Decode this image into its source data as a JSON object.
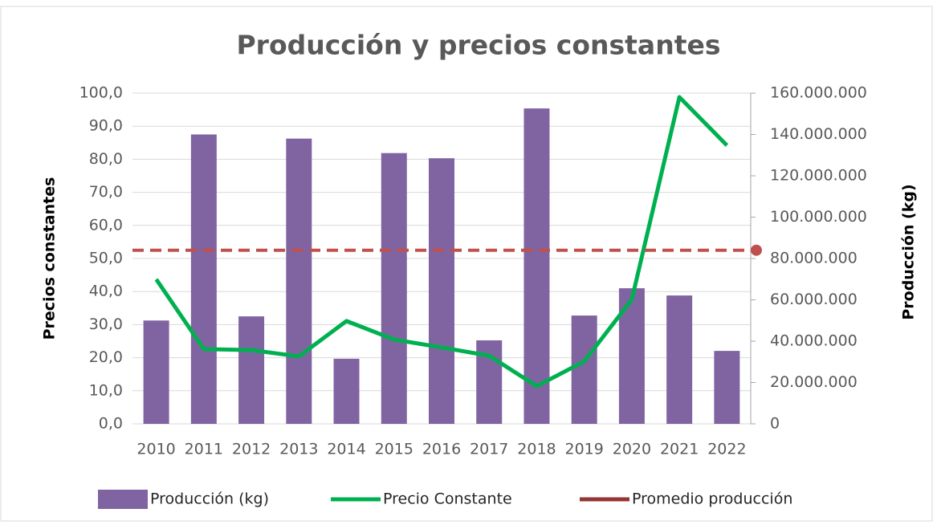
{
  "chart_data": {
    "type": "bar-line",
    "title": "Producción y precios constantes",
    "y_label": "Precios constantes",
    "y2_label": "Producción (kg)",
    "categories": [
      "2010",
      "2011",
      "2012",
      "2013",
      "2014",
      "2015",
      "2016",
      "2017",
      "2018",
      "2019",
      "2020",
      "2021",
      "2022"
    ],
    "series": [
      {
        "name": "Producción (kg)",
        "type": "bar",
        "axis": "y2",
        "color": "#8064a2",
        "values": [
          50000000,
          140000000,
          52000000,
          138000000,
          31500000,
          131000000,
          128500000,
          40400000,
          152600000,
          52400000,
          65600000,
          62100000,
          35300000
        ]
      },
      {
        "name": "Precio Constante",
        "type": "line",
        "axis": "y",
        "color": "#00b050",
        "values": [
          43.7,
          22.6,
          22.3,
          20.4,
          31.1,
          25.5,
          23.1,
          20.6,
          11.4,
          18.9,
          37.6,
          98.8,
          84.2
        ]
      },
      {
        "name": "Promedio producción",
        "type": "dashed-line",
        "axis": "y2",
        "color": "#c0504d",
        "values": [
          84000000,
          84000000,
          84000000,
          84000000,
          84000000,
          84000000,
          84000000,
          84000000,
          84000000,
          84000000,
          84000000,
          84000000,
          84000000
        ]
      }
    ],
    "ylim": [
      0,
      100
    ],
    "yticks": [
      {
        "value": 0,
        "label": "0,0"
      },
      {
        "value": 10,
        "label": "10,0"
      },
      {
        "value": 20,
        "label": "20,0"
      },
      {
        "value": 30,
        "label": "30,0"
      },
      {
        "value": 40,
        "label": "40,0"
      },
      {
        "value": 50,
        "label": "50,0"
      },
      {
        "value": 60,
        "label": "60,0"
      },
      {
        "value": 70,
        "label": "70,0"
      },
      {
        "value": 80,
        "label": "80,0"
      },
      {
        "value": 90,
        "label": "90,0"
      },
      {
        "value": 100,
        "label": "100,0"
      }
    ],
    "y2lim": [
      0,
      160000000
    ],
    "y2ticks": [
      0,
      {
        "value": 20000000,
        "label": "20.000.000"
      },
      {
        "value": 40000000,
        "label": "40.000.000"
      },
      {
        "value": 60000000,
        "label": "60.000.000"
      },
      {
        "value": 80000000,
        "label": "80.000.000"
      },
      {
        "value": 100000000,
        "label": "100.000.000"
      },
      {
        "value": 120000000,
        "label": "120.000.000"
      },
      {
        "value": 140000000,
        "label": "140.000.000"
      },
      {
        "value": 160000000,
        "label": "160.000.000"
      }
    ],
    "grid": true,
    "legend": "bottom"
  }
}
